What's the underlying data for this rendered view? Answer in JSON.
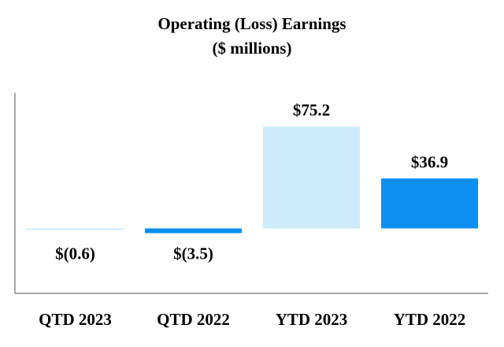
{
  "chart_data": {
    "type": "bar",
    "title": "Operating (Loss) Earnings",
    "subtitle": "($ millions)",
    "categories": [
      "QTD 2023",
      "QTD 2022",
      "YTD 2023",
      "YTD 2022"
    ],
    "values": [
      -0.6,
      -3.5,
      75.2,
      36.9
    ],
    "value_labels": [
      "$(0.6)",
      "$(3.5)",
      "$75.2",
      "$36.9"
    ],
    "bar_colors": [
      "#cdeafb",
      "#0b8ff0",
      "#cdeafb",
      "#0b8ff0"
    ],
    "ylim": [
      -48,
      100
    ],
    "grid": false,
    "legend": "none",
    "xlabel": "",
    "ylabel": ""
  }
}
